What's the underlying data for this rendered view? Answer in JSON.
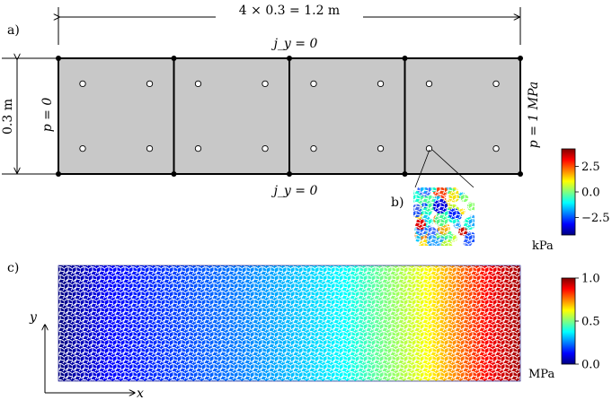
{
  "panel_a": {
    "label": "a)",
    "width_dimension": "4 × 0.3 = 1.2 m",
    "height_dimension": "0.3 m",
    "top_boundary": "j_y = 0",
    "bottom_boundary": "j_y = 0",
    "left_boundary": "p = 0",
    "right_boundary": "p = 1 MPa",
    "block_count": 4,
    "points_per_block": 4
  },
  "panel_b": {
    "label": "b)",
    "colorbar": {
      "unit": "kPa",
      "ticks": [
        "2.5",
        "0.0",
        "−2.5"
      ],
      "tick_values": [
        2.5,
        0.0,
        -2.5
      ],
      "range": [
        -4.2,
        4.2
      ]
    }
  },
  "panel_c": {
    "label": "c)",
    "axis_x": "x",
    "axis_y": "y",
    "colorbar": {
      "unit": "MPa",
      "ticks": [
        "1.0",
        "0.5",
        "0.0"
      ],
      "tick_values": [
        1.0,
        0.5,
        0.0
      ],
      "range": [
        0.0,
        1.0
      ]
    }
  },
  "colors": {
    "block_fill": "#c8c8c8",
    "outline": "#000000"
  }
}
